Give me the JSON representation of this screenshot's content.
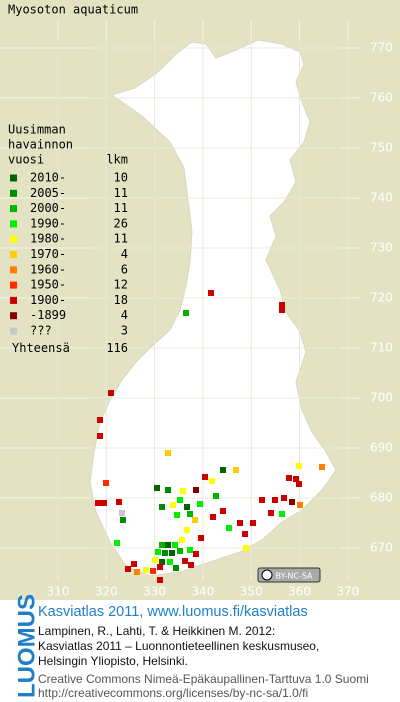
{
  "title": "Myosoton aquaticum",
  "legend": {
    "header": [
      "Uusimman",
      "havainnon",
      "vuosi",
      "lkm"
    ],
    "rows": [
      {
        "label": "2010-",
        "count": 10,
        "color": "#006400"
      },
      {
        "label": "2005-",
        "count": 11,
        "color": "#008c00"
      },
      {
        "label": "2000-",
        "count": 11,
        "color": "#00b400"
      },
      {
        "label": "1990-",
        "count": 26,
        "color": "#00ee00"
      },
      {
        "label": "1980-",
        "count": 11,
        "color": "#ffff00"
      },
      {
        "label": "1970-",
        "count": 4,
        "color": "#ffcc00"
      },
      {
        "label": "1960-",
        "count": 6,
        "color": "#ff7f00"
      },
      {
        "label": "1950-",
        "count": 12,
        "color": "#ff2a00"
      },
      {
        "label": "1900-",
        "count": 18,
        "color": "#cc0000"
      },
      {
        "label": "-1899",
        "count": 4,
        "color": "#8b0000"
      },
      {
        "label": "???",
        "count": 3,
        "color": "#c8c8c8"
      }
    ],
    "total_label": "Yhteensä",
    "total": 116
  },
  "grid": {
    "x_labels": [
      310,
      320,
      330,
      340,
      350,
      360,
      370
    ],
    "y_labels": [
      670,
      680,
      690,
      700,
      710,
      720,
      730,
      740,
      750,
      760,
      770
    ]
  },
  "license_badge": "BY-NC-SA",
  "footer": {
    "brand": "LUOMUS",
    "atlas": "Kasviatlas 2011, www.luomus.fi/kasviatlas",
    "citation": [
      "Lampinen, R., Lahti, T. & Heikkinen M. 2012:",
      "Kasviatlas 2011 – Luonnontieteellinen keskusmuseo,",
      "Helsingin Yliopisto, Helsinki."
    ],
    "license": [
      "Creative Commons Nimeä-Epäkaupallinen-Tarttuva 1.0 Suomi",
      "http://creativecommons.org/licenses/by-nc-sa/1.0/fi"
    ]
  }
}
